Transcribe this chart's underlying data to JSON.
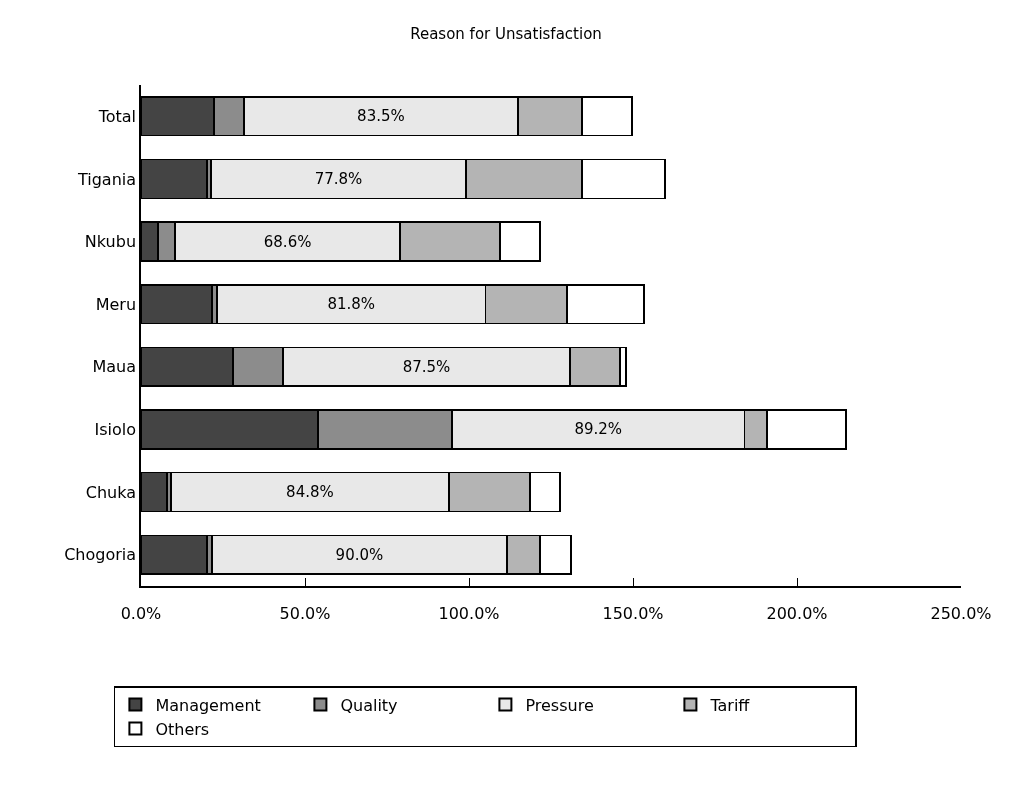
{
  "chart_data": {
    "type": "bar",
    "orientation": "horizontal",
    "stacked": true,
    "title": "Reason for Unsatisfaction",
    "categories": [
      "Total",
      "Tigania",
      "Nkubu",
      "Meru",
      "Maua",
      "Isiolo",
      "Chuka",
      "Chogoria"
    ],
    "series": [
      {
        "name": "Management",
        "color": "#444444",
        "values": [
          22.3,
          20.1,
          5.2,
          21.6,
          28.0,
          54.0,
          7.9,
          20.1
        ]
      },
      {
        "name": "Quality",
        "color": "#8c8c8c",
        "values": [
          9.1,
          1.2,
          5.2,
          1.6,
          15.3,
          40.8,
          1.2,
          1.5
        ]
      },
      {
        "name": "Pressure",
        "color": "#e8e8e8",
        "values": [
          83.5,
          77.8,
          68.6,
          81.8,
          87.5,
          89.2,
          84.8,
          90.0
        ],
        "value_labels": [
          "83.5%",
          "77.8%",
          "68.6%",
          "81.8%",
          "87.5%",
          "89.2%",
          "84.8%",
          "90.0%"
        ]
      },
      {
        "name": "Tariff",
        "color": "#b4b4b4",
        "values": [
          19.6,
          35.4,
          30.5,
          24.9,
          15.2,
          6.9,
          24.7,
          10.0
        ]
      },
      {
        "name": "Others",
        "color": "#ffffff",
        "values": [
          15.2,
          25.3,
          12.1,
          23.5,
          1.9,
          24.0,
          9.1,
          9.5
        ]
      }
    ],
    "xlim": [
      0,
      250
    ],
    "xticks": [
      {
        "value": 0,
        "label": "0.0%"
      },
      {
        "value": 50,
        "label": "50.0%"
      },
      {
        "value": 100,
        "label": "100.0%"
      },
      {
        "value": 150,
        "label": "150.0%"
      },
      {
        "value": 200,
        "label": "200.0%"
      },
      {
        "value": 250,
        "label": "250.0%"
      }
    ],
    "legend": "bottom"
  }
}
